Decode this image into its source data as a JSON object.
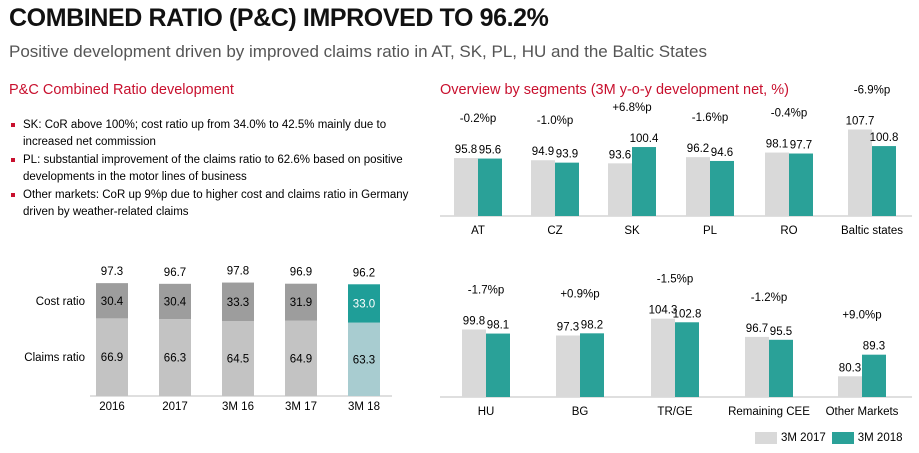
{
  "header": {
    "title": "COMBINED RATIO (P&C) IMPROVED TO 96.2%",
    "subtitle": "Positive development driven by improved claims ratio in AT, SK, PL, HU and the Baltic States"
  },
  "left": {
    "section_title": "P&C Combined Ratio development",
    "bullets": [
      "SK: CoR above 100%; cost ratio up from 34.0% to 42.5% mainly due to increased net commission",
      "PL: substantial improvement of the claims ratio to 62.6% based on positive developments in the motor lines of business",
      "Other markets: CoR up 9%p due to higher cost and claims ratio in Germany driven by weather-related claims"
    ]
  },
  "right": {
    "section_title": "Overview by segments (3M y-o-y development net, %)"
  },
  "legend": {
    "items": [
      "3M 2017",
      "3M 2018"
    ]
  },
  "colors": {
    "accent": "#c8102e",
    "bar_2017": "#d9d9d9",
    "bar_2018": "#2aa198",
    "cost_bar": "#9d9d9d",
    "claims_bar": "#c3c3c3",
    "cost_bar_highlight": "#1f9e98",
    "claims_bar_highlight": "#a8ccd0"
  },
  "chart_data": [
    {
      "type": "bar",
      "stacked": true,
      "categories": [
        "2016",
        "2017",
        "3M 16",
        "3M 17",
        "3M 18"
      ],
      "series": [
        {
          "name": "Claims ratio",
          "values": [
            66.9,
            66.3,
            64.5,
            64.9,
            63.3
          ]
        },
        {
          "name": "Cost ratio",
          "values": [
            30.4,
            30.4,
            33.3,
            31.9,
            33.0
          ]
        }
      ],
      "totals": [
        97.3,
        96.7,
        97.8,
        96.9,
        96.2
      ],
      "highlight_index": 4
    },
    {
      "type": "bar",
      "categories": [
        "AT",
        "CZ",
        "SK",
        "PL",
        "RO",
        "Baltic states"
      ],
      "series": [
        {
          "name": "3M 2017",
          "values": [
            95.8,
            94.9,
            93.6,
            96.2,
            98.1,
            107.7
          ]
        },
        {
          "name": "3M 2018",
          "values": [
            95.6,
            93.9,
            100.4,
            94.6,
            97.7,
            100.8
          ]
        }
      ],
      "annotations": [
        "-0.2%p",
        "-1.0%p",
        "+6.8%p",
        "-1.6%p",
        "-0.4%p",
        "-6.9%p"
      ]
    },
    {
      "type": "bar",
      "categories": [
        "HU",
        "BG",
        "TR/GE",
        "Remaining CEE",
        "Other Markets"
      ],
      "series": [
        {
          "name": "3M 2017",
          "values": [
            99.8,
            97.3,
            104.3,
            96.7,
            80.3
          ]
        },
        {
          "name": "3M 2018",
          "values": [
            98.1,
            98.2,
            102.8,
            95.5,
            89.3
          ]
        }
      ],
      "annotations": [
        "-1.7%p",
        "+0.9%p",
        "-1.5%p",
        "-1.2%p",
        "+9.0%p"
      ]
    }
  ]
}
